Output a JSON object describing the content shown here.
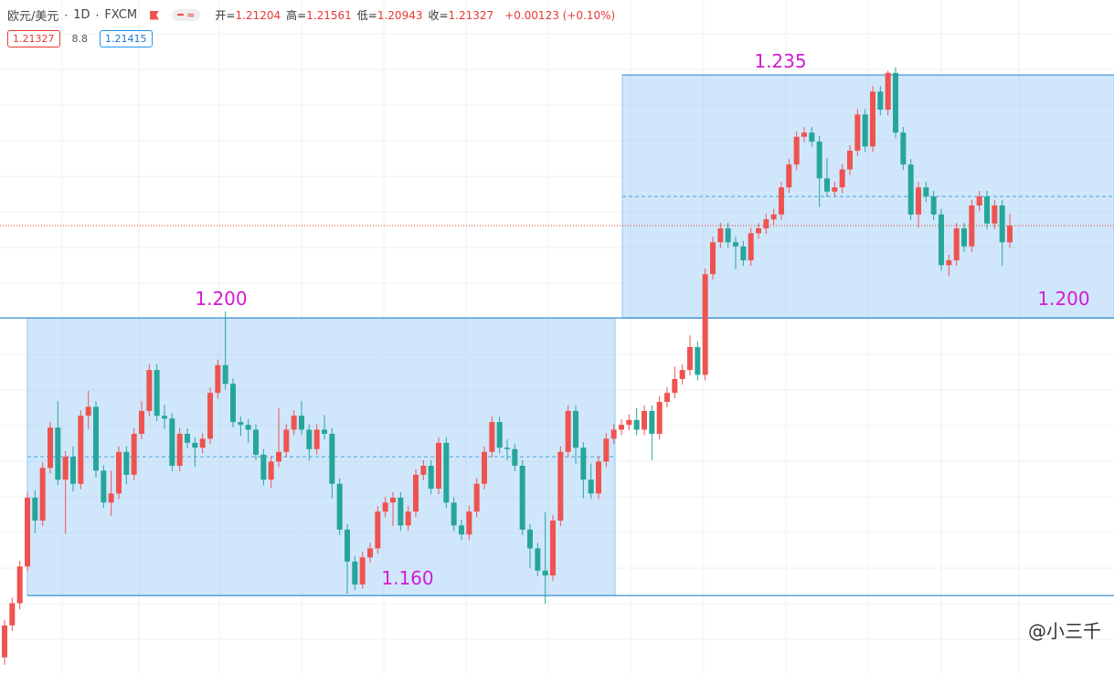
{
  "header": {
    "symbol": "欧元/美元",
    "interval": "1D",
    "source": "FXCM",
    "ohlc": [
      {
        "label": "开=",
        "value": "1.21204"
      },
      {
        "label": "高=",
        "value": "1.21561"
      },
      {
        "label": "低=",
        "value": "1.20943"
      },
      {
        "label": "收=",
        "value": "1.21327"
      }
    ],
    "change": "+0.00123 (+0.10%)"
  },
  "badges": [
    "1.21327",
    "8.8",
    "1.21415"
  ],
  "watermark": "@小三千",
  "chart_data": {
    "type": "candlestick",
    "up_color": "#ef5350",
    "down_color": "#26a69a",
    "ylim": [
      1.1487,
      1.2458
    ],
    "grid": true,
    "last_price_line": true,
    "ranges": [
      {
        "top": {
          "value": 1.2,
          "label": "1.200"
        },
        "bottom": {
          "value": 1.16,
          "label": "1.160"
        }
      },
      {
        "top": {
          "value": 1.235,
          "label": "1.235"
        },
        "bottom": {
          "value": 1.2,
          "label": "1.200"
        }
      }
    ],
    "open": [
      1.1511,
      1.1557,
      1.1589,
      1.1642,
      1.1741,
      1.1708,
      1.1784,
      1.1842,
      1.1767,
      1.18,
      1.1761,
      1.1859,
      1.1872,
      1.178,
      1.1734,
      1.1747,
      1.1807,
      1.1774,
      1.1833,
      1.1866,
      1.1925,
      1.1859,
      1.1855,
      1.1787,
      1.1833,
      1.182,
      1.1813,
      1.1826,
      1.1892,
      1.1932,
      1.1905,
      1.185,
      1.1846,
      1.1839,
      1.1803,
      1.1767,
      1.1793,
      1.1807,
      1.1839,
      1.1859,
      1.1839,
      1.1811,
      1.1839,
      1.1833,
      1.1761,
      1.1695,
      1.1649,
      1.1616,
      1.1655,
      1.1668,
      1.1721,
      1.1734,
      1.1741,
      1.1701,
      1.1721,
      1.1774,
      1.1787,
      1.1754,
      1.182,
      1.1734,
      1.1701,
      1.1688,
      1.1721,
      1.1761,
      1.1807,
      1.185,
      1.1813,
      1.1811,
      1.1787,
      1.1695,
      1.1668,
      1.1636,
      1.1629,
      1.1708,
      1.1807,
      1.1866,
      1.1813,
      1.1767,
      1.1747,
      1.1793,
      1.1826,
      1.1839,
      1.1846,
      1.1853,
      1.1839,
      1.1866,
      1.1833,
      1.1879,
      1.1892,
      1.1912,
      1.1925,
      1.1958,
      1.1918,
      1.2063,
      1.2109,
      1.2129,
      1.2109,
      1.2103,
      1.2083,
      1.2122,
      1.2129,
      1.2142,
      1.2149,
      1.2188,
      1.2221,
      1.2261,
      1.2267,
      1.2254,
      1.2201,
      1.2182,
      1.2188,
      1.2214,
      1.2241,
      1.2293,
      1.2247,
      1.2326,
      1.23,
      1.2353,
      1.2267,
      1.2221,
      1.2149,
      1.2188,
      1.2175,
      1.2149,
      1.2076,
      1.2083,
      1.2129,
      1.2103,
      1.2162,
      1.2175,
      1.2136,
      1.2162,
      1.2109
    ],
    "high": [
      1.1565,
      1.1597,
      1.165,
      1.1749,
      1.1752,
      1.1792,
      1.185,
      1.188,
      1.1808,
      1.1815,
      1.1867,
      1.1895,
      1.188,
      1.1788,
      1.178,
      1.1815,
      1.1815,
      1.1841,
      1.188,
      1.1933,
      1.1933,
      1.1875,
      1.1863,
      1.1841,
      1.1841,
      1.1828,
      1.1834,
      1.19,
      1.194,
      1.2009,
      1.1913,
      1.1858,
      1.1854,
      1.1847,
      1.1811,
      1.1801,
      1.187,
      1.1847,
      1.1867,
      1.188,
      1.1847,
      1.1847,
      1.186,
      1.1841,
      1.1769,
      1.1703,
      1.1657,
      1.1663,
      1.1676,
      1.1729,
      1.1742,
      1.1749,
      1.1749,
      1.1729,
      1.1782,
      1.1795,
      1.1795,
      1.1828,
      1.1828,
      1.1742,
      1.1709,
      1.1729,
      1.1769,
      1.1815,
      1.1858,
      1.1858,
      1.1825,
      1.1819,
      1.1795,
      1.1703,
      1.1676,
      1.172,
      1.1716,
      1.1815,
      1.1874,
      1.1874,
      1.1821,
      1.179,
      1.1801,
      1.1834,
      1.1847,
      1.1854,
      1.1861,
      1.187,
      1.1874,
      1.1874,
      1.1887,
      1.19,
      1.193,
      1.1933,
      1.1975,
      1.1966,
      1.2071,
      1.2117,
      1.2137,
      1.2137,
      1.2117,
      1.2111,
      1.213,
      1.2137,
      1.215,
      1.2157,
      1.2196,
      1.2229,
      1.2269,
      1.2275,
      1.2275,
      1.2262,
      1.223,
      1.2196,
      1.2222,
      1.2249,
      1.2301,
      1.2301,
      1.2334,
      1.2334,
      1.2356,
      1.2361,
      1.2275,
      1.2229,
      1.2196,
      1.2196,
      1.2183,
      1.2157,
      1.2091,
      1.2137,
      1.2137,
      1.217,
      1.2183,
      1.2183,
      1.217,
      1.217,
      1.215
    ],
    "low": [
      1.15,
      1.1549,
      1.158,
      1.1635,
      1.169,
      1.17,
      1.1776,
      1.1759,
      1.1689,
      1.175,
      1.1753,
      1.184,
      1.177,
      1.1726,
      1.1715,
      1.1739,
      1.176,
      1.1766,
      1.1825,
      1.1858,
      1.1851,
      1.184,
      1.1779,
      1.1779,
      1.1812,
      1.1785,
      1.1805,
      1.1818,
      1.1884,
      1.1897,
      1.1842,
      1.183,
      1.182,
      1.1795,
      1.1759,
      1.1755,
      1.1785,
      1.1799,
      1.1831,
      1.1831,
      1.1795,
      1.1803,
      1.1825,
      1.174,
      1.1687,
      1.1603,
      1.1608,
      1.161,
      1.1647,
      1.166,
      1.1713,
      1.17,
      1.1693,
      1.1693,
      1.1713,
      1.1766,
      1.1746,
      1.1746,
      1.1726,
      1.1693,
      1.168,
      1.168,
      1.1713,
      1.1753,
      1.1799,
      1.1805,
      1.1795,
      1.1779,
      1.1687,
      1.164,
      1.1628,
      1.1588,
      1.1621,
      1.17,
      1.1799,
      1.179,
      1.174,
      1.1739,
      1.1739,
      1.1785,
      1.1818,
      1.1831,
      1.1838,
      1.1831,
      1.1831,
      1.1795,
      1.1825,
      1.1871,
      1.1884,
      1.1904,
      1.1917,
      1.191,
      1.191,
      1.2055,
      1.2101,
      1.2101,
      1.207,
      1.2075,
      1.2075,
      1.2114,
      1.2121,
      1.2134,
      1.2141,
      1.218,
      1.2213,
      1.2253,
      1.2246,
      1.216,
      1.2174,
      1.2174,
      1.218,
      1.2206,
      1.2233,
      1.2239,
      1.2239,
      1.2292,
      1.2292,
      1.2259,
      1.2213,
      1.2141,
      1.213,
      1.2167,
      1.2141,
      1.2068,
      1.206,
      1.2075,
      1.2095,
      1.2095,
      1.2154,
      1.2128,
      1.2128,
      1.2075,
      1.2101
    ],
    "close": [
      1.1557,
      1.1589,
      1.1642,
      1.1741,
      1.1708,
      1.1784,
      1.1842,
      1.1767,
      1.18,
      1.1761,
      1.1859,
      1.1872,
      1.178,
      1.1734,
      1.1747,
      1.1807,
      1.1774,
      1.1833,
      1.1866,
      1.1925,
      1.1859,
      1.1855,
      1.1787,
      1.1833,
      1.182,
      1.1813,
      1.1826,
      1.1892,
      1.1932,
      1.1905,
      1.185,
      1.1846,
      1.1839,
      1.1803,
      1.1767,
      1.1793,
      1.1807,
      1.1839,
      1.1859,
      1.1839,
      1.1811,
      1.1839,
      1.1833,
      1.1761,
      1.1695,
      1.1649,
      1.1616,
      1.1655,
      1.1668,
      1.1721,
      1.1734,
      1.1741,
      1.1701,
      1.1721,
      1.1774,
      1.1787,
      1.1754,
      1.182,
      1.1734,
      1.1701,
      1.1688,
      1.1721,
      1.1761,
      1.1807,
      1.185,
      1.1813,
      1.1811,
      1.1787,
      1.1695,
      1.1668,
      1.1636,
      1.1629,
      1.1708,
      1.1807,
      1.1866,
      1.1813,
      1.1767,
      1.1747,
      1.1793,
      1.1826,
      1.1839,
      1.1846,
      1.1853,
      1.1839,
      1.1866,
      1.1833,
      1.1879,
      1.1892,
      1.1912,
      1.1925,
      1.1958,
      1.1918,
      1.2063,
      1.2109,
      1.2129,
      1.2109,
      1.2103,
      1.2083,
      1.2122,
      1.2129,
      1.2142,
      1.2149,
      1.2188,
      1.2221,
      1.2261,
      1.2267,
      1.2254,
      1.2201,
      1.2182,
      1.2188,
      1.2214,
      1.2241,
      1.2293,
      1.2247,
      1.2326,
      1.23,
      1.2353,
      1.2267,
      1.2221,
      1.2149,
      1.2188,
      1.2175,
      1.2149,
      1.2076,
      1.2083,
      1.2129,
      1.2103,
      1.2162,
      1.2175,
      1.2136,
      1.2162,
      1.2109,
      1.2133
    ]
  }
}
